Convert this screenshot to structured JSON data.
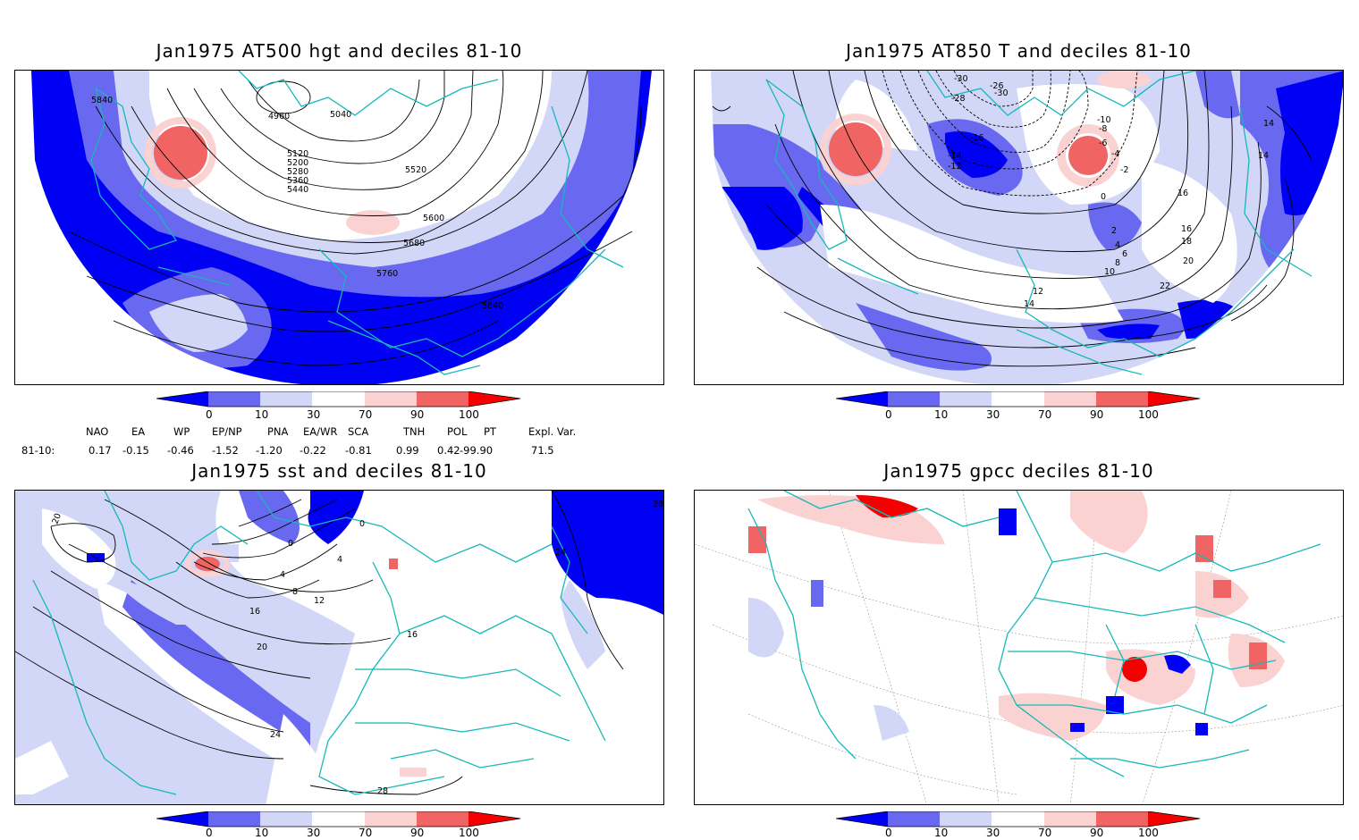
{
  "colors": {
    "dark_blue": "#0000f5",
    "mid_blue": "#6868f0",
    "light_blue": "#d2d6f7",
    "light_red": "#fbd2d2",
    "mid_red": "#f06464",
    "dark_red": "#f50000",
    "coast": "#18b8b8",
    "contour": "#000000"
  },
  "panels": [
    {
      "title": "Jan1975 AT500 hgt and deciles 81-10",
      "contour_labels": [
        "5840",
        "4960",
        "5040",
        "5120",
        "5200",
        "5280",
        "5360",
        "5440",
        "5520",
        "5600",
        "5680",
        "5760",
        "5840"
      ]
    },
    {
      "title": "Jan1975 AT850 T and deciles 81-10",
      "contour_labels": [
        "-30",
        "-26",
        "-28",
        "-30",
        "-16",
        "-14",
        "-12",
        "-10",
        "-8",
        "-6",
        "-4",
        "-2",
        "0",
        "2",
        "4",
        "6",
        "8",
        "10",
        "12",
        "14",
        "16",
        "18",
        "20",
        "22",
        "16",
        "14",
        "14"
      ]
    },
    {
      "title": "Jan1975 sst and deciles 81-10",
      "contour_labels": [
        "20",
        "0",
        "0",
        "4",
        "4",
        "8",
        "12",
        "16",
        "16",
        "20",
        "24",
        "24",
        "28",
        "28"
      ]
    },
    {
      "title": "Jan1975 gpcc deciles 81-10",
      "contour_labels": []
    }
  ],
  "colorbar": {
    "ticks": [
      "0",
      "10",
      "30",
      "70",
      "90",
      "100"
    ]
  },
  "indices": {
    "row_label": "81-10:",
    "headers": [
      "NAO",
      "EA",
      "WP",
      "EP/NP",
      "PNA",
      "EA/WR",
      "SCA",
      "TNH",
      "POL",
      "PT",
      "Expl. Var."
    ],
    "values": [
      "0.17",
      "-0.15",
      "-0.46",
      "-1.52",
      "-1.20",
      "-0.22",
      "-0.81",
      "0.99",
      "0.42",
      "-99.90",
      "71.5"
    ]
  }
}
